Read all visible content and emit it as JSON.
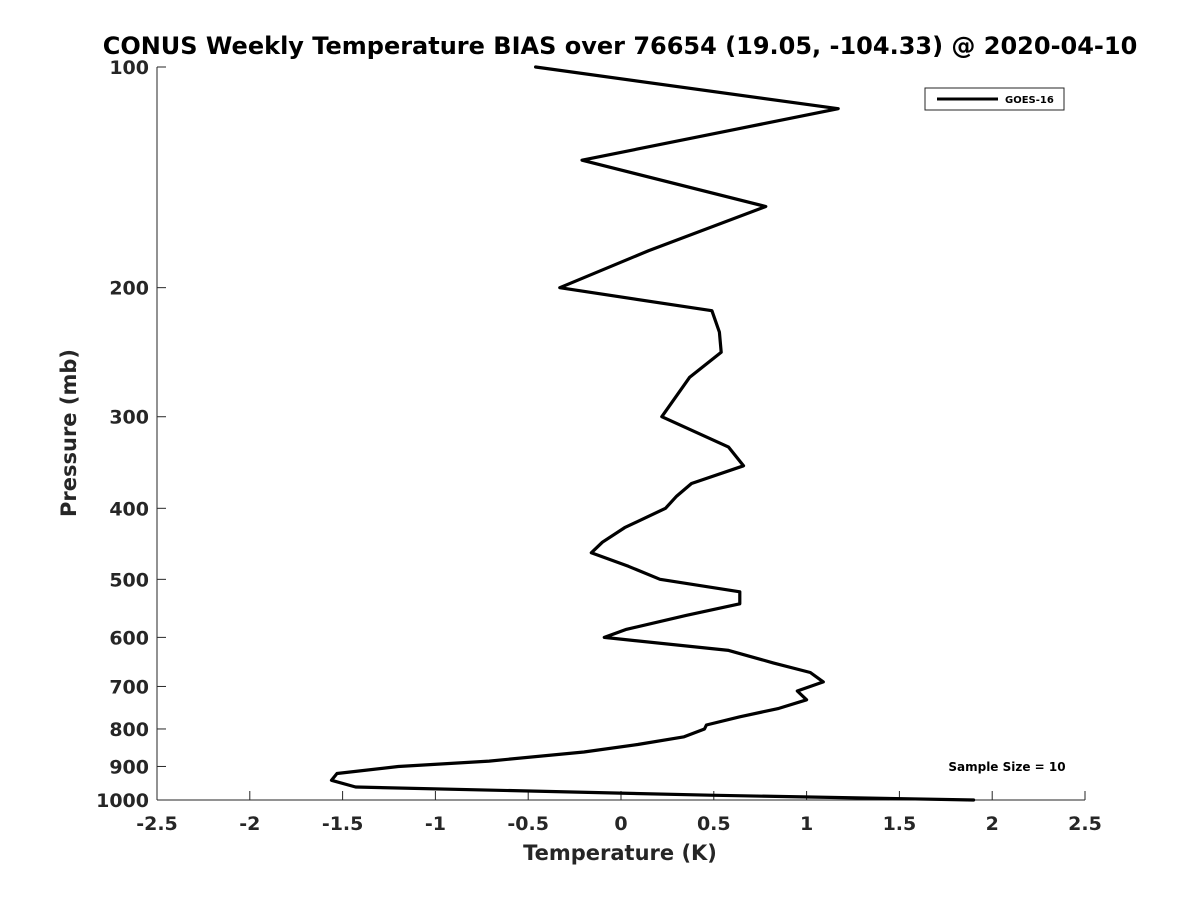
{
  "chart_data": {
    "type": "line",
    "title": "CONUS Weekly Temperature BIAS over 76654 (19.05, -104.33) @ 2020-04-10",
    "xlabel": "Temperature (K)",
    "ylabel": "Pressure (mb)",
    "xlim": [
      -2.5,
      2.5
    ],
    "ylim": [
      1000,
      100
    ],
    "yscale": "log",
    "y_reversed": true,
    "xticks": [
      -2.5,
      -2,
      -1.5,
      -1,
      -0.5,
      0,
      0.5,
      1,
      1.5,
      2,
      2.5
    ],
    "xtick_labels": [
      "-2.5",
      "-2",
      "-1.5",
      "-1",
      "-0.5",
      "0",
      "0.5",
      "1",
      "1.5",
      "2",
      "2.5"
    ],
    "yticks": [
      100,
      200,
      300,
      400,
      500,
      600,
      700,
      800,
      900,
      1000
    ],
    "ytick_labels": [
      "100",
      "200",
      "300",
      "400",
      "500",
      "600",
      "700",
      "800",
      "900",
      "1000"
    ],
    "grid": false,
    "legend_position": "top-right",
    "annotation": "Sample Size = 10",
    "series": [
      {
        "name": "GOES-16",
        "color": "#000000",
        "x": [
          -0.46,
          1.17,
          -0.21,
          0.78,
          0.15,
          -0.33,
          0.49,
          0.53,
          0.54,
          0.37,
          0.22,
          0.58,
          0.66,
          0.38,
          0.3,
          0.24,
          0.02,
          -0.1,
          -0.16,
          0.04,
          0.21,
          0.64,
          0.64,
          0.35,
          0.03,
          -0.09,
          0.58,
          0.82,
          1.02,
          1.09,
          0.95,
          1.0,
          0.85,
          0.64,
          0.46,
          0.45,
          0.34,
          0.09,
          -0.2,
          -0.71,
          -1.2,
          -1.53,
          -1.56,
          -1.43,
          0.48,
          1.9
        ],
        "y": [
          100,
          114,
          134,
          155,
          178,
          200,
          215,
          230,
          245,
          265,
          300,
          330,
          350,
          370,
          385,
          400,
          425,
          445,
          460,
          480,
          500,
          520,
          540,
          560,
          585,
          600,
          625,
          650,
          670,
          690,
          710,
          730,
          750,
          770,
          790,
          800,
          820,
          840,
          860,
          885,
          900,
          920,
          940,
          960,
          985,
          1000
        ]
      }
    ]
  }
}
